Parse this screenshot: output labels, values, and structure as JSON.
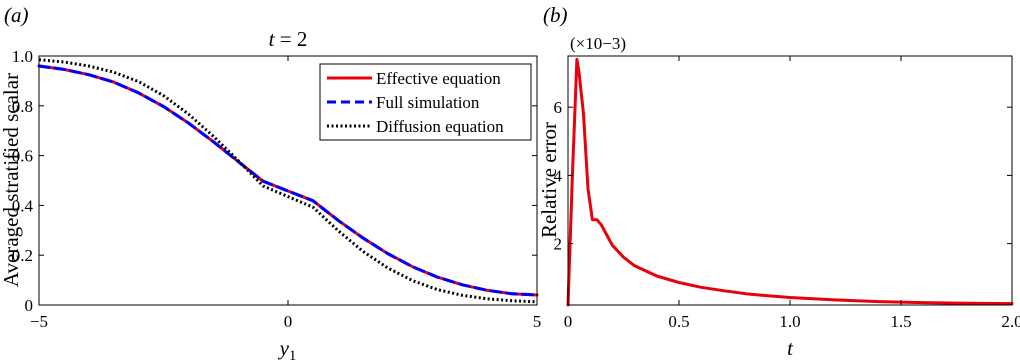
{
  "chart_data": [
    {
      "type": "line",
      "panel_label": "(a)",
      "title": "t = 2",
      "xlabel": "y1",
      "ylabel": "Averaged stratified scalar",
      "xlim": [
        -5,
        5
      ],
      "ylim": [
        0,
        1
      ],
      "xticks": [
        -5,
        0,
        5
      ],
      "yticks": [
        0,
        0.2,
        0.4,
        0.6,
        0.8,
        1.0
      ],
      "xtick_labels": [
        "−5",
        "0",
        "5"
      ],
      "ytick_labels": [
        "0",
        "0.2",
        "0.4",
        "0.6",
        "0.8",
        "1.0"
      ],
      "grid": false,
      "legend_position": "top-right",
      "x": [
        -5,
        -4.5,
        -4,
        -3.5,
        -3,
        -2.5,
        -2,
        -1.5,
        -1,
        -0.5,
        0,
        0.5,
        1,
        1.5,
        2,
        2.5,
        3,
        3.5,
        4,
        4.5,
        5
      ],
      "series": [
        {
          "name": "Effective equation",
          "color": "#e8000b",
          "style": "solid",
          "values": [
            0.96,
            0.946,
            0.925,
            0.895,
            0.852,
            0.797,
            0.731,
            0.656,
            0.576,
            0.497,
            0.5,
            0.419,
            0.341,
            0.27,
            0.207,
            0.154,
            0.112,
            0.081,
            0.059,
            0.045,
            0.04
          ]
        },
        {
          "name": "Full simulation",
          "color": "#0000ff",
          "style": "dashed",
          "values": [
            0.96,
            0.946,
            0.925,
            0.895,
            0.852,
            0.797,
            0.731,
            0.656,
            0.576,
            0.497,
            0.5,
            0.419,
            0.341,
            0.27,
            0.207,
            0.154,
            0.112,
            0.081,
            0.059,
            0.045,
            0.04
          ]
        },
        {
          "name": "Diffusion equation",
          "color": "#000000",
          "style": "dotted",
          "values": [
            0.985,
            0.976,
            0.96,
            0.935,
            0.897,
            0.841,
            0.767,
            0.678,
            0.58,
            0.478,
            0.5,
            0.393,
            0.3,
            0.216,
            0.149,
            0.098,
            0.062,
            0.039,
            0.025,
            0.017,
            0.013
          ]
        }
      ]
    },
    {
      "type": "line",
      "panel_label": "(b)",
      "xlabel": "t",
      "ylabel": "Relative error",
      "y_scale_note": "(×10−3)",
      "xlim": [
        0,
        2.0
      ],
      "ylim": [
        0.2,
        7.5
      ],
      "xticks": [
        0,
        0.5,
        1.0,
        1.5,
        2.0
      ],
      "yticks": [
        2,
        4,
        6
      ],
      "xtick_labels": [
        "0",
        "0.5",
        "1.0",
        "1.5",
        "2.0"
      ],
      "ytick_labels": [
        "2",
        "4",
        "6"
      ],
      "grid": false,
      "series": [
        {
          "color": "#e8000b",
          "style": "solid",
          "x": [
            0,
            0.02,
            0.04,
            0.05,
            0.07,
            0.09,
            0.11,
            0.13,
            0.15,
            0.2,
            0.25,
            0.3,
            0.4,
            0.5,
            0.6,
            0.7,
            0.8,
            0.9,
            1.0,
            1.2,
            1.4,
            1.6,
            1.8,
            2.0
          ],
          "values": [
            0.2,
            4.0,
            7.4,
            7.0,
            5.8,
            3.6,
            2.7,
            2.7,
            2.55,
            1.95,
            1.6,
            1.35,
            1.05,
            0.86,
            0.72,
            0.62,
            0.53,
            0.47,
            0.42,
            0.35,
            0.3,
            0.27,
            0.25,
            0.24
          ]
        }
      ]
    }
  ]
}
